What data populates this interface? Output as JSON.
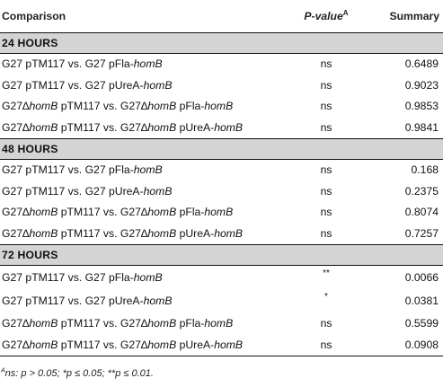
{
  "header": {
    "comparison": "Comparison",
    "pvalue": "P-value",
    "pvalue_sup": "A",
    "summary": "Summary"
  },
  "sections": [
    {
      "label": "24 HOURS",
      "rows": [
        {
          "pre": "G27 pTM117 vs. G27 pFla-",
          "gene": "homB",
          "post": "",
          "gene2": "",
          "pvalue": "ns",
          "summary": "0.6489"
        },
        {
          "pre": "G27 pTM117 vs. G27 pUreA-",
          "gene": "homB",
          "post": "",
          "gene2": "",
          "pvalue": "ns",
          "summary": "0.9023"
        },
        {
          "pre": "G27∆",
          "gene": "homB",
          "post": " pTM117 vs. G27∆",
          "gene2": "homB",
          "post2": " pFla-",
          "gene3": "homB",
          "pvalue": "ns",
          "summary": "0.9853"
        },
        {
          "pre": "G27∆",
          "gene": "homB",
          "post": " pTM117 vs. G27∆",
          "gene2": "homB",
          "post2": " pUreA-",
          "gene3": "homB",
          "pvalue": "ns",
          "summary": "0.9841"
        }
      ]
    },
    {
      "label": "48 HOURS",
      "rows": [
        {
          "pre": "G27 pTM117 vs. G27 pFla-",
          "gene": "homB",
          "post": "",
          "gene2": "",
          "pvalue": "ns",
          "summary": "0.168"
        },
        {
          "pre": "G27 pTM117 vs. G27 pUreA-",
          "gene": "homB",
          "post": "",
          "gene2": "",
          "pvalue": "ns",
          "summary": "0.2375"
        },
        {
          "pre": "G27∆",
          "gene": "homB",
          "post": " pTM117 vs. G27∆",
          "gene2": "homB",
          "post2": " pFla-",
          "gene3": "homB",
          "pvalue": "ns",
          "summary": "0.8074"
        },
        {
          "pre": "G27∆",
          "gene": "homB",
          "post": " pTM117 vs. G27∆",
          "gene2": "homB",
          "post2": " pUreA-",
          "gene3": "homB",
          "pvalue": "ns",
          "summary": "0.7257"
        }
      ]
    },
    {
      "label": "72 HOURS",
      "rows": [
        {
          "pre": "G27 pTM117 vs. G27 pFla-",
          "gene": "homB",
          "post": "",
          "gene2": "",
          "pvalue": "**",
          "summary": "0.0066"
        },
        {
          "pre": "G27 pTM117 vs. G27 pUreA-",
          "gene": "homB",
          "post": "",
          "gene2": "",
          "pvalue": "*",
          "summary": "0.0381"
        },
        {
          "pre": "G27∆",
          "gene": "homB",
          "post": " pTM117 vs. G27∆",
          "gene2": "homB",
          "post2": " pFla-",
          "gene3": "homB",
          "pvalue": "ns",
          "summary": "0.5599"
        },
        {
          "pre": "G27∆",
          "gene": "homB",
          "post": " pTM117 vs. G27∆",
          "gene2": "homB",
          "post2": " pUreA-",
          "gene3": "homB",
          "pvalue": "ns",
          "summary": "0.0908"
        }
      ]
    }
  ],
  "footnote": {
    "marker": "A",
    "text": "ns: p > 0.05; *p ≤ 0.05; **p ≤ 0.01."
  }
}
